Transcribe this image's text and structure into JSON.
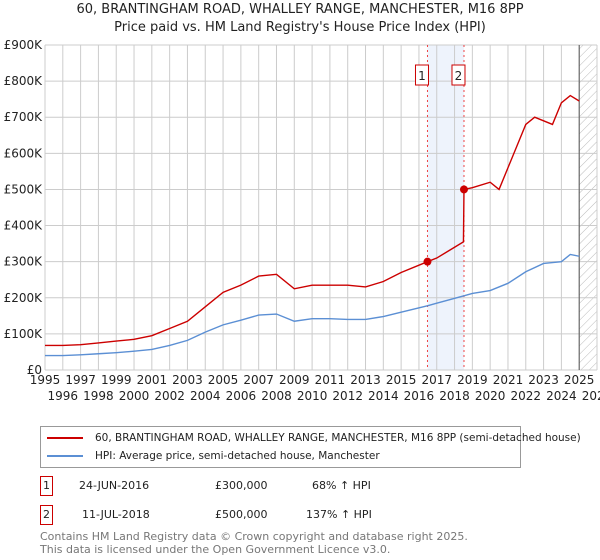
{
  "title": "60, BRANTINGHAM ROAD, WHALLEY RANGE, MANCHESTER, M16 8PP",
  "subtitle": "Price paid vs. HM Land Registry's House Price Index (HPI)",
  "chart_data": {
    "type": "line",
    "ylim": [
      0,
      900000
    ],
    "xlim": [
      1995,
      2026
    ],
    "yticks": [
      {
        "v": 0,
        "l": "£0"
      },
      {
        "v": 100000,
        "l": "£100K"
      },
      {
        "v": 200000,
        "l": "£200K"
      },
      {
        "v": 300000,
        "l": "£300K"
      },
      {
        "v": 400000,
        "l": "£400K"
      },
      {
        "v": 500000,
        "l": "£500K"
      },
      {
        "v": 600000,
        "l": "£600K"
      },
      {
        "v": 700000,
        "l": "£700K"
      },
      {
        "v": 800000,
        "l": "£800K"
      },
      {
        "v": 900000,
        "l": "£900K"
      }
    ],
    "xticks": [
      "1995",
      "1996",
      "1997",
      "1998",
      "1999",
      "2000",
      "2001",
      "2002",
      "2003",
      "2004",
      "2005",
      "2006",
      "2007",
      "2008",
      "2009",
      "2010",
      "2011",
      "2012",
      "2013",
      "2014",
      "2015",
      "2016",
      "2017",
      "2018",
      "2019",
      "2020",
      "2021",
      "2022",
      "2023",
      "2024",
      "2025",
      "2026"
    ],
    "grid": true,
    "series": [
      {
        "name": "60, BRANTINGHAM ROAD, WHALLEY RANGE, MANCHESTER, M16 8PP (semi-detached house)",
        "color": "#cc0000",
        "x": [
          1995,
          1996,
          1997,
          1998,
          1999,
          2000,
          2001,
          2002,
          2003,
          2004,
          2005,
          2006,
          2007,
          2008,
          2009,
          2010,
          2011,
          2012,
          2013,
          2014,
          2015,
          2016.48,
          2017,
          2018,
          2018.5,
          2018.53,
          2019,
          2020,
          2020.5,
          2021,
          2021.5,
          2022,
          2022.5,
          2023,
          2023.5,
          2024,
          2024.5,
          2025
        ],
        "y": [
          68000,
          68000,
          70000,
          75000,
          80000,
          85000,
          95000,
          115000,
          135000,
          175000,
          215000,
          235000,
          260000,
          265000,
          225000,
          235000,
          235000,
          235000,
          230000,
          245000,
          270000,
          300000,
          310000,
          340000,
          355000,
          500000,
          505000,
          520000,
          500000,
          560000,
          620000,
          680000,
          700000,
          690000,
          680000,
          740000,
          760000,
          745000
        ]
      },
      {
        "name": "HPI: Average price, semi-detached house, Manchester",
        "color": "#5b8fd4",
        "x": [
          1995,
          1996,
          1997,
          1998,
          1999,
          2000,
          2001,
          2002,
          2003,
          2004,
          2005,
          2006,
          2007,
          2008,
          2009,
          2010,
          2011,
          2012,
          2013,
          2014,
          2015,
          2016.5,
          2017,
          2018.5,
          2019,
          2020,
          2021,
          2022,
          2023,
          2024,
          2024.5,
          2025
        ],
        "y": [
          40000,
          40000,
          42000,
          45000,
          48000,
          52000,
          57000,
          68000,
          82000,
          105000,
          125000,
          138000,
          152000,
          155000,
          135000,
          142000,
          142000,
          140000,
          140000,
          148000,
          160000,
          178000,
          185000,
          205000,
          212000,
          220000,
          240000,
          272000,
          295000,
          300000,
          320000,
          315000
        ]
      }
    ],
    "sales": [
      {
        "n": "1",
        "x": 2016.48,
        "y": 300000
      },
      {
        "n": "2",
        "x": 2018.53,
        "y": 500000
      }
    ]
  },
  "legend": {
    "red": "60, BRANTINGHAM ROAD, WHALLEY RANGE, MANCHESTER, M16 8PP (semi-detached house)",
    "blue": "HPI: Average price, semi-detached house, Manchester"
  },
  "transactions": [
    {
      "n": "1",
      "date": "24-JUN-2016",
      "price": "£300,000",
      "hpi": "68% ↑ HPI"
    },
    {
      "n": "2",
      "date": "11-JUL-2018",
      "price": "£500,000",
      "hpi": "137% ↑ HPI"
    }
  ],
  "footer": [
    "Contains HM Land Registry data © Crown copyright and database right 2025.",
    "This data is licensed under the Open Government Licence v3.0."
  ]
}
